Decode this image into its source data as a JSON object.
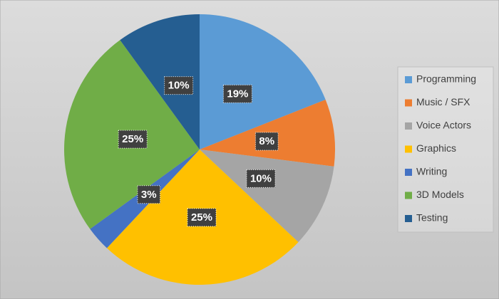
{
  "chart_data": {
    "type": "pie",
    "categories": [
      "Programming",
      "Music / SFX",
      "Voice Actors",
      "Graphics",
      "Writing",
      "3D Models",
      "Testing"
    ],
    "values": [
      19,
      8,
      10,
      25,
      3,
      25,
      10
    ],
    "value_labels": [
      "19%",
      "8%",
      "10%",
      "25%",
      "3%",
      "25%",
      "10%"
    ],
    "colors": [
      "#5b9bd5",
      "#ed7d31",
      "#a5a5a5",
      "#ffc000",
      "#4472c4",
      "#70ad47",
      "#255e91"
    ],
    "legend": "right"
  }
}
